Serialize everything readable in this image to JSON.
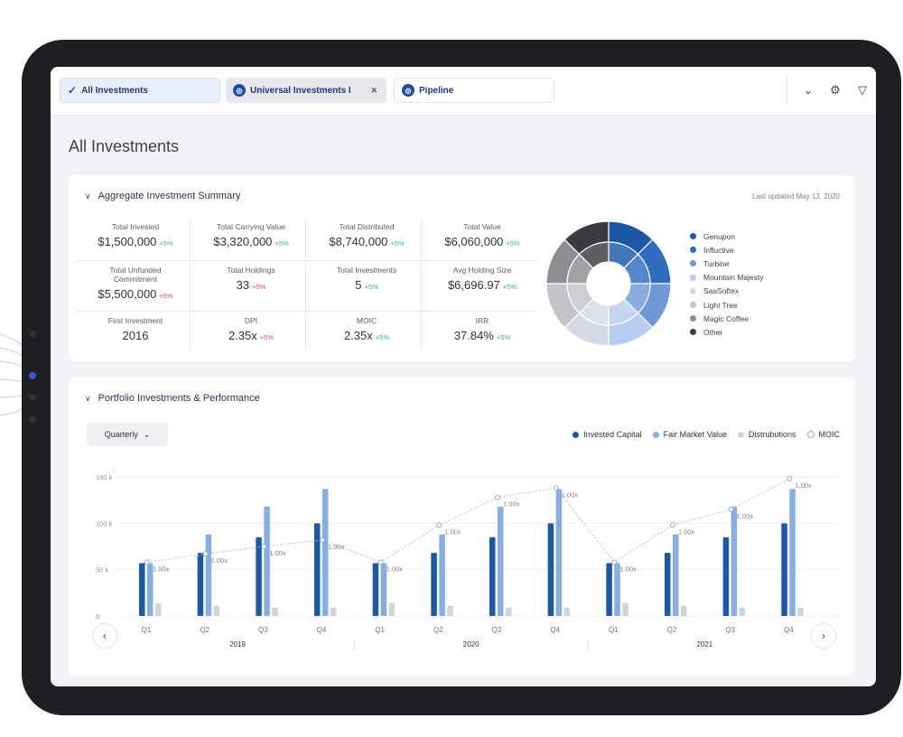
{
  "tabs": [
    {
      "label": "All Investments",
      "icon": "check-icon"
    },
    {
      "label": "Universal Investments I",
      "icon": "globe-icon"
    },
    {
      "label": "Pipeline",
      "icon": "globe-icon"
    }
  ],
  "page_title": "All Investments",
  "summary": {
    "title": "Aggregate Investment Summary",
    "updated": "Last updated May 13, 2020",
    "metrics": [
      {
        "label": "Total Invested",
        "value": "$1,500,000",
        "change": "+5%",
        "dir": "up"
      },
      {
        "label": "Total Carrying Value",
        "value": "$3,320,000",
        "change": "+5%",
        "dir": "up"
      },
      {
        "label": "Total Distributed",
        "value": "$8,740,000",
        "change": "+5%",
        "dir": "up"
      },
      {
        "label": "Total Value",
        "value": "$6,060,000",
        "change": "+5%",
        "dir": "up"
      },
      {
        "label": "Total Unfunded Commitment",
        "value": "$5,500,000",
        "change": "+5%",
        "dir": "down"
      },
      {
        "label": "Total Holdings",
        "value": "33",
        "change": "+5%",
        "dir": "down"
      },
      {
        "label": "Total Investments",
        "value": "5",
        "change": "+5%",
        "dir": "up"
      },
      {
        "label": "Avg Holding Size",
        "value": "$6,696.97",
        "change": "+5%",
        "dir": "up"
      },
      {
        "label": "First Investment",
        "value": "2016",
        "change": "",
        "dir": "up"
      },
      {
        "label": "DPI",
        "value": "2.35x",
        "change": "+5%",
        "dir": "down"
      },
      {
        "label": "MOIC",
        "value": "2.35x",
        "change": "+5%",
        "dir": "up"
      },
      {
        "label": "IRR",
        "value": "37.84%",
        "change": "+5%",
        "dir": "up"
      }
    ],
    "legend": [
      {
        "label": "Genupon",
        "color": "#1c58a8"
      },
      {
        "label": "Influctive",
        "color": "#2f6bbf"
      },
      {
        "label": "Turbine",
        "color": "#6f98d8"
      },
      {
        "label": "Mountain Majesty",
        "color": "#b7cdef"
      },
      {
        "label": "SaaSoftex",
        "color": "#d5dbe5"
      },
      {
        "label": "Light Tree",
        "color": "#c2c4c8"
      },
      {
        "label": "Magic Coffee",
        "color": "#8c8e92"
      },
      {
        "label": "Other",
        "color": "#3a3b3e"
      }
    ]
  },
  "performance": {
    "title": "Portfolio Investments & Performance",
    "period": "Quarterly",
    "legend": [
      {
        "label": "Invested Capital",
        "color": "#1c58a8"
      },
      {
        "label": "Fair Market Value",
        "color": "#86aee3"
      },
      {
        "label": "Distrubutions",
        "color": "#cfd5de"
      },
      {
        "label": "MOIC",
        "color": "#9aa6c8"
      }
    ]
  },
  "chart_data": {
    "type": "bar",
    "categories": [
      "Q1",
      "Q2",
      "Q3",
      "Q4",
      "Q1",
      "Q2",
      "Q3",
      "Q4",
      "Q1",
      "Q2",
      "Q3",
      "Q4"
    ],
    "groups": [
      "2019",
      "2020",
      "2021"
    ],
    "y_ticks": [
      "150 k",
      "100 k",
      "50 k",
      "0"
    ],
    "ylim": [
      0,
      150
    ],
    "series": [
      {
        "name": "Invested Capital",
        "values": [
          57,
          68,
          85,
          100,
          57,
          68,
          85,
          100,
          57,
          68,
          85,
          100
        ]
      },
      {
        "name": "Fair Market Value",
        "values": [
          57,
          88,
          118,
          137,
          57,
          88,
          118,
          137,
          57,
          88,
          118,
          137
        ]
      },
      {
        "name": "Distrubutions",
        "values": [
          14,
          11,
          9,
          9,
          14,
          11,
          9,
          9,
          14,
          11,
          9,
          9
        ]
      },
      {
        "name": "MOIC",
        "values": [
          58,
          67,
          75,
          82,
          58,
          98,
          128,
          138,
          58,
          98,
          115,
          148
        ],
        "label": "1.00x"
      }
    ]
  }
}
